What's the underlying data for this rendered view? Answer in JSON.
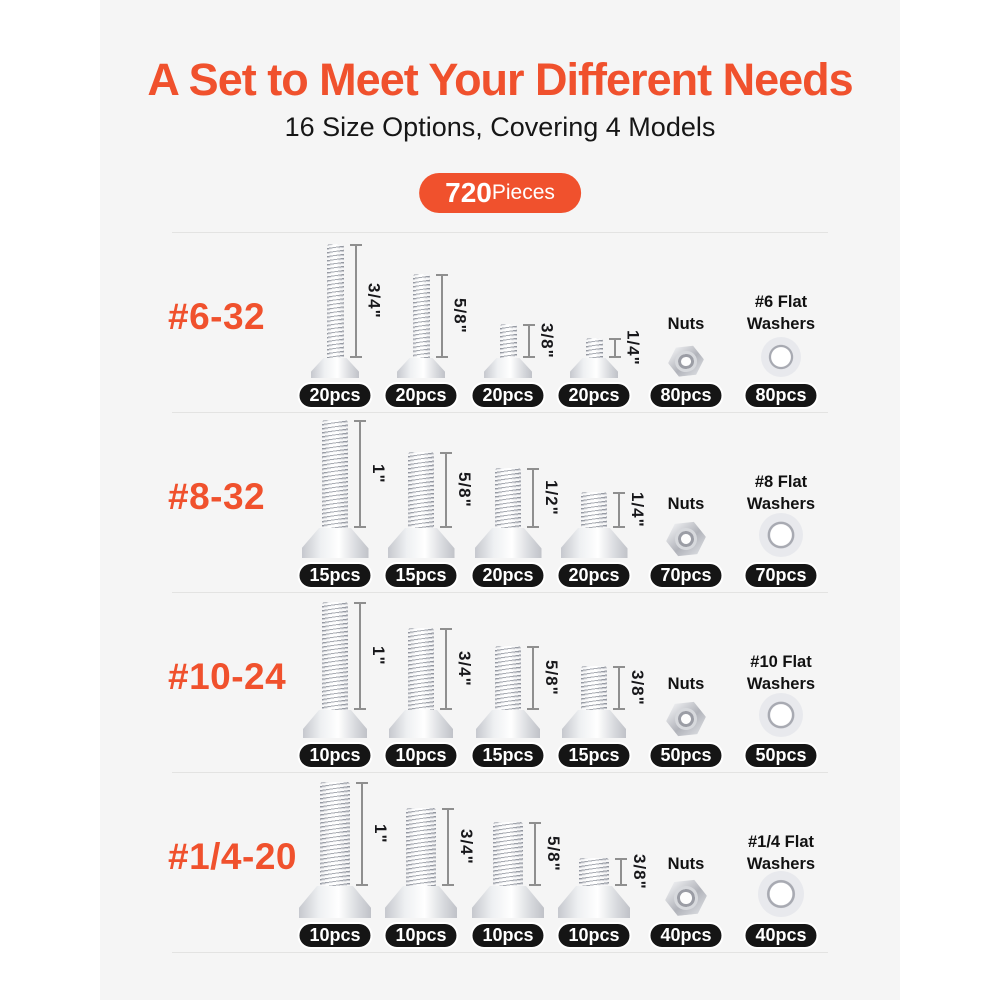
{
  "colors": {
    "accent": "#f0512d",
    "panel_bg": "#f5f5f5",
    "page_bg": "#ffffff",
    "pill_bg": "#151515",
    "pill_text": "#ffffff"
  },
  "header": {
    "title": "A Set to Meet Your Different Needs",
    "subtitle": "16 Size Options, Covering 4 Models",
    "count": "720",
    "count_unit": "Pieces"
  },
  "rows": [
    {
      "model": "#6-32",
      "screws": [
        {
          "len": "3/4\"",
          "pcs": "20pcs"
        },
        {
          "len": "5/8\"",
          "pcs": "20pcs"
        },
        {
          "len": "3/8\"",
          "pcs": "20pcs"
        },
        {
          "len": "1/4\"",
          "pcs": "20pcs"
        }
      ],
      "nut": {
        "title": "Nuts",
        "pcs": "80pcs"
      },
      "washer": {
        "line1": "#6 Flat",
        "line2": "Washers",
        "pcs": "80pcs"
      }
    },
    {
      "model": "#8-32",
      "screws": [
        {
          "len": "1\"",
          "pcs": "15pcs"
        },
        {
          "len": "5/8\"",
          "pcs": "15pcs"
        },
        {
          "len": "1/2\"",
          "pcs": "20pcs"
        },
        {
          "len": "1/4\"",
          "pcs": "20pcs"
        }
      ],
      "nut": {
        "title": "Nuts",
        "pcs": "70pcs"
      },
      "washer": {
        "line1": "#8 Flat",
        "line2": "Washers",
        "pcs": "70pcs"
      }
    },
    {
      "model": "#10-24",
      "screws": [
        {
          "len": "1\"",
          "pcs": "10pcs"
        },
        {
          "len": "3/4\"",
          "pcs": "10pcs"
        },
        {
          "len": "5/8\"",
          "pcs": "15pcs"
        },
        {
          "len": "3/8\"",
          "pcs": "15pcs"
        }
      ],
      "nut": {
        "title": "Nuts",
        "pcs": "50pcs"
      },
      "washer": {
        "line1": "#10 Flat",
        "line2": "Washers",
        "pcs": "50pcs"
      }
    },
    {
      "model": "#1/4-20",
      "screws": [
        {
          "len": "1\"",
          "pcs": "10pcs"
        },
        {
          "len": "3/4\"",
          "pcs": "10pcs"
        },
        {
          "len": "5/8\"",
          "pcs": "10pcs"
        },
        {
          "len": "3/8\"",
          "pcs": "10pcs"
        }
      ],
      "nut": {
        "title": "Nuts",
        "pcs": "40pcs"
      },
      "washer": {
        "line1": "#1/4 Flat",
        "line2": "Washers",
        "pcs": "40pcs"
      }
    }
  ]
}
